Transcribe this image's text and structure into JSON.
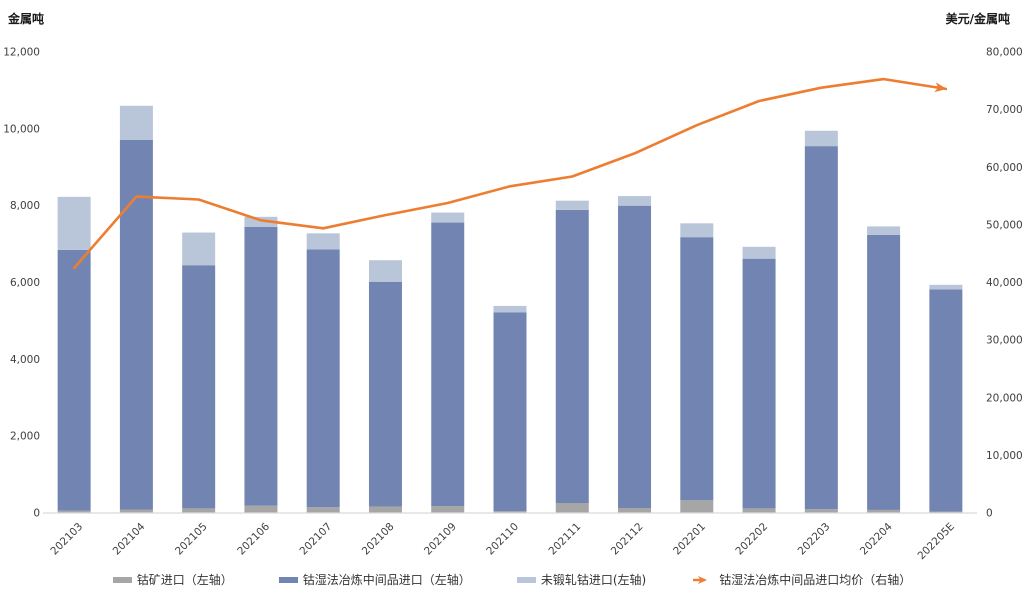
{
  "chart": {
    "left_axis_title": "金属吨",
    "right_axis_title": "美元/金属吨",
    "y_left_ticks": [
      "0",
      "2,000",
      "4,000",
      "6,000",
      "8,000",
      "10,000",
      "12,000"
    ],
    "y_right_ticks": [
      "0",
      "10,000",
      "20,000",
      "30,000",
      "40,000",
      "50,000",
      "60,000",
      "70,000",
      "80,000"
    ]
  },
  "chart_data": {
    "type": "combo",
    "categories": [
      "202103",
      "202104",
      "202105",
      "202106",
      "202107",
      "202108",
      "202109",
      "202110",
      "202111",
      "202112",
      "202201",
      "202202",
      "202203",
      "202204",
      "202205E"
    ],
    "series": [
      {
        "name": "钴矿进口（左轴）",
        "type": "bar",
        "axis": "left",
        "color": "#a6a6a6",
        "values": [
          60,
          90,
          120,
          190,
          150,
          170,
          180,
          50,
          260,
          130,
          330,
          120,
          100,
          80,
          40
        ]
      },
      {
        "name": "钴湿法冶炼中间品进口（左轴）",
        "type": "bar",
        "axis": "left",
        "color": "#7285b2",
        "values": [
          6790,
          9620,
          6330,
          7260,
          6710,
          5850,
          7380,
          5170,
          7630,
          7870,
          6850,
          6500,
          9450,
          7160,
          5780
        ]
      },
      {
        "name": "未锻轧钴进口(左轴)",
        "type": "bar",
        "axis": "left",
        "color": "#b9c5d8",
        "values": [
          1380,
          890,
          850,
          260,
          420,
          560,
          260,
          170,
          240,
          250,
          360,
          310,
          400,
          220,
          120
        ]
      },
      {
        "name": "钴湿法冶炼中间品进口均价（右轴）",
        "type": "line",
        "axis": "right",
        "color": "#ed7d31",
        "values": [
          42500,
          54900,
          54400,
          50800,
          49400,
          51700,
          53800,
          56700,
          58400,
          62400,
          67300,
          71500,
          73800,
          75300,
          73600
        ]
      }
    ],
    "left_axis": {
      "min": 0,
      "max": 12000,
      "step": 2000
    },
    "right_axis": {
      "min": 0,
      "max": 80000,
      "step": 10000
    },
    "grid": false,
    "legend_position": "bottom",
    "stacked_bars": true,
    "bar_totals": [
      8230,
      10600,
      7300,
      7710,
      7280,
      6580,
      7820,
      5390,
      8130,
      8250,
      7540,
      6930,
      9950,
      7460,
      5940
    ]
  },
  "colors": {
    "baseline": "#d9d9d9",
    "tick_text": "#404040",
    "legend_text": "#333333"
  }
}
